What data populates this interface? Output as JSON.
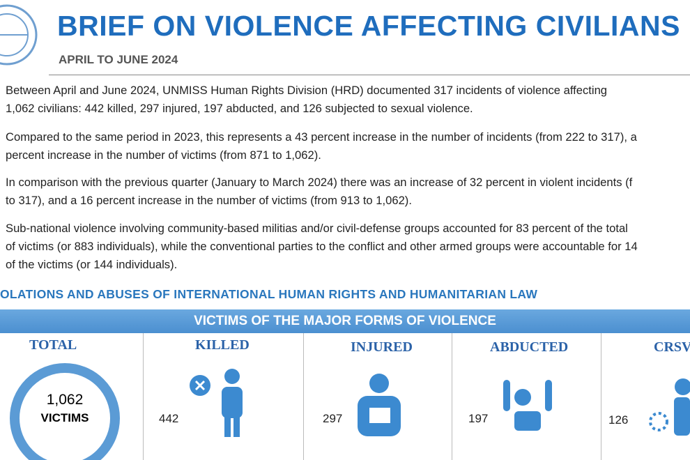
{
  "header": {
    "title": "BRIEF ON VIOLENCE AFFECTING CIVILIANS",
    "subtitle": "APRIL TO JUNE 2024"
  },
  "paragraphs": [
    [
      "Between April and June 2024, UNMISS Human Rights Division (HRD) documented 317 incidents of violence affecting",
      "1,062 civilians: 442 killed, 297 injured, 197 abducted, and 126 subjected to sexual violence."
    ],
    [
      "Compared to the same period in 2023, this represents a 43 percent increase in the number of incidents (from 222 to 317), a",
      "percent increase in the number of victims (from 871 to 1,062)."
    ],
    [
      "In comparison with the previous quarter (January to March 2024) there was an increase of 32 percent in violent incidents (f",
      "to 317), and a 16 percent increase in the number of victims (from 913 to 1,062)."
    ],
    [
      "Sub-national violence involving community-based militias and/or civil-defense groups accounted for 83 percent of the total",
      "of victims (or 883 individuals), while the conventional parties to the conflict and other armed groups were accountable for 14",
      "of the victims (or 144 individuals)."
    ]
  ],
  "section": {
    "heading": "OLATIONS AND ABUSES OF INTERNATIONAL HUMAN RIGHTS AND HUMANITARIAN LAW",
    "banner": "VICTIMS OF THE MAJOR FORMS OF VIOLENCE"
  },
  "total": {
    "label": "TOTAL",
    "value": "1,062",
    "unit": "VICTIMS"
  },
  "cards": [
    {
      "label": "KILLED",
      "value": "442"
    },
    {
      "label": "INJURED",
      "value": "297"
    },
    {
      "label": "ABDUCTED",
      "value": "197"
    },
    {
      "label": "CRSV",
      "value": "126"
    }
  ]
}
